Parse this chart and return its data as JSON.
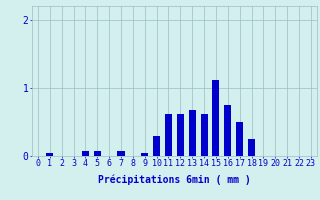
{
  "hours": [
    0,
    1,
    2,
    3,
    4,
    5,
    6,
    7,
    8,
    9,
    10,
    11,
    12,
    13,
    14,
    15,
    16,
    17,
    18,
    19,
    20,
    21,
    22,
    23
  ],
  "values": [
    0,
    0.05,
    0,
    0,
    0.07,
    0.07,
    0,
    0.07,
    0,
    0.05,
    0.3,
    0.62,
    0.62,
    0.68,
    0.62,
    1.12,
    0.75,
    0.5,
    0.25,
    0,
    0,
    0,
    0,
    0
  ],
  "bar_color": "#0000cc",
  "bg_color": "#d4f0ee",
  "grid_color": "#9bbfbf",
  "xlabel": "Précipitations 6min ( mm )",
  "ylim": [
    0,
    2.2
  ],
  "yticks": [
    0,
    1,
    2
  ],
  "xlim": [
    -0.5,
    23.5
  ],
  "text_color": "#0000cc",
  "xlabel_fontsize": 7,
  "tick_fontsize": 6
}
